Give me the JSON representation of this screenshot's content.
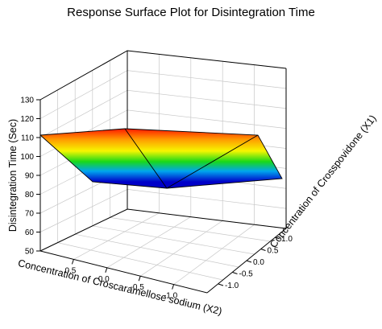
{
  "chart_data": {
    "type": "surface",
    "title": "Response Surface Plot for Disintegration Time",
    "zlabel": "Disintegration Time (Sec)",
    "x1label": "Concentration of Crosspovidone (X1)",
    "x2label": "Concentration of Croscaramellose sodium  (X2)",
    "zlim": [
      50,
      130
    ],
    "z_ticks": [
      "50",
      "60",
      "70",
      "80",
      "90",
      "100",
      "110",
      "120",
      "130"
    ],
    "x1_ticks": [
      "-1.0",
      "-0.5",
      "0.0",
      "0.5",
      "1.0"
    ],
    "x2_ticks": [
      "0.5",
      "0.0",
      "-0.5",
      "-1.0"
    ],
    "grid": true,
    "colormap": [
      "#0000cc",
      "#00a0ff",
      "#00e000",
      "#ffff00",
      "#ff8000",
      "#ff0000"
    ],
    "surface": [
      {
        "x1": -1,
        "x2": 1,
        "z": 110
      },
      {
        "x1": 1,
        "x2": 1,
        "z": 87
      },
      {
        "x1": -1,
        "x2": -1,
        "z": 111
      },
      {
        "x1": 1,
        "x2": -1,
        "z": 88
      },
      {
        "x1": 0,
        "x2": 0,
        "z": 86
      }
    ]
  }
}
